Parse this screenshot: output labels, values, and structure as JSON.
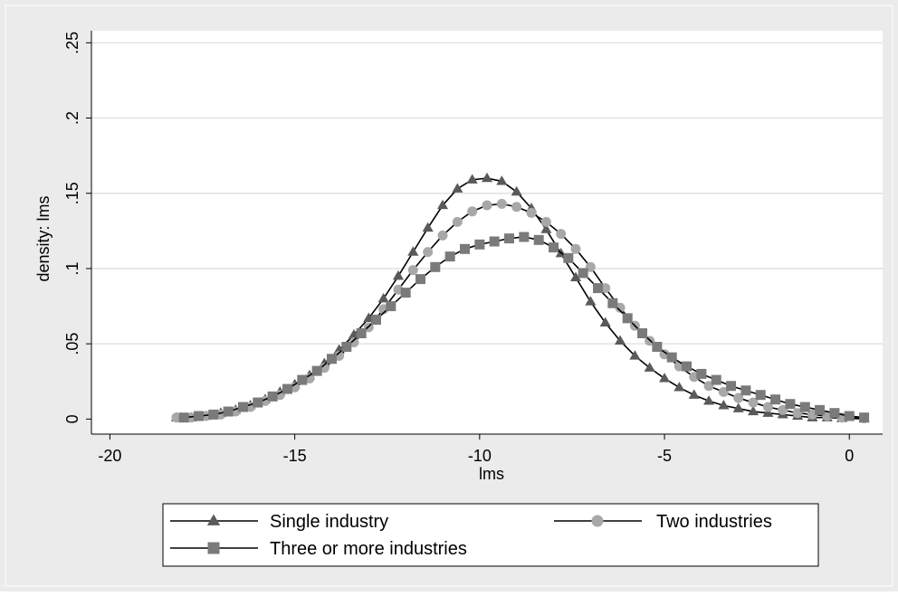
{
  "chart_data": {
    "type": "line",
    "xlabel": "lms",
    "ylabel": "density: lms",
    "xlim": [
      -20.5,
      0.9
    ],
    "ylim": [
      -0.01,
      0.258
    ],
    "xticks": [
      -20,
      -15,
      -10,
      -5,
      0
    ],
    "xtick_labels": [
      "-20",
      "-15",
      "-10",
      "-5",
      "0"
    ],
    "yticks": [
      0,
      0.05,
      0.1,
      0.15,
      0.2,
      0.25
    ],
    "ytick_labels": [
      "0",
      ".05",
      ".1",
      ".15",
      ".2",
      ".25"
    ],
    "grid": true,
    "legend_position": "bottom",
    "background": "#ebebeb",
    "plot_background": "#ffffff",
    "grid_color": "#e2e2e2",
    "series": [
      {
        "name": "Single industry",
        "marker": "triangle",
        "color": "#5a5a5a",
        "x": [
          -18.2,
          -17.8,
          -17.4,
          -17.0,
          -16.6,
          -16.2,
          -15.8,
          -15.4,
          -15.0,
          -14.6,
          -14.2,
          -13.8,
          -13.4,
          -13.0,
          -12.6,
          -12.2,
          -11.8,
          -11.4,
          -11.0,
          -10.6,
          -10.2,
          -9.8,
          -9.4,
          -9.0,
          -8.6,
          -8.2,
          -7.8,
          -7.4,
          -7.0,
          -6.6,
          -6.2,
          -5.8,
          -5.4,
          -5.0,
          -4.6,
          -4.2,
          -3.8,
          -3.4,
          -3.0,
          -2.6,
          -2.2,
          -1.8,
          -1.4,
          -1.0,
          -0.6,
          -0.2,
          0.4
        ],
        "y": [
          0.001,
          0.001,
          0.002,
          0.004,
          0.006,
          0.009,
          0.013,
          0.018,
          0.023,
          0.029,
          0.037,
          0.046,
          0.056,
          0.067,
          0.08,
          0.095,
          0.111,
          0.127,
          0.142,
          0.153,
          0.159,
          0.16,
          0.158,
          0.151,
          0.14,
          0.126,
          0.11,
          0.094,
          0.078,
          0.064,
          0.052,
          0.042,
          0.034,
          0.027,
          0.021,
          0.016,
          0.012,
          0.009,
          0.007,
          0.005,
          0.004,
          0.003,
          0.002,
          0.001,
          0.001,
          0.0005,
          0.0002
        ]
      },
      {
        "name": "Two industries",
        "marker": "circle",
        "color": "#a8a8a8",
        "x": [
          -18.2,
          -17.8,
          -17.4,
          -17.0,
          -16.6,
          -16.2,
          -15.8,
          -15.4,
          -15.0,
          -14.6,
          -14.2,
          -13.8,
          -13.4,
          -13.0,
          -12.6,
          -12.2,
          -11.8,
          -11.4,
          -11.0,
          -10.6,
          -10.2,
          -9.8,
          -9.4,
          -9.0,
          -8.6,
          -8.2,
          -7.8,
          -7.4,
          -7.0,
          -6.6,
          -6.2,
          -5.8,
          -5.4,
          -5.0,
          -4.6,
          -4.2,
          -3.8,
          -3.4,
          -3.0,
          -2.6,
          -2.2,
          -1.8,
          -1.4,
          -1.0,
          -0.6,
          -0.2,
          0.4
        ],
        "y": [
          0.001,
          0.001,
          0.002,
          0.003,
          0.005,
          0.008,
          0.012,
          0.016,
          0.021,
          0.027,
          0.034,
          0.042,
          0.051,
          0.061,
          0.073,
          0.086,
          0.099,
          0.111,
          0.122,
          0.131,
          0.138,
          0.142,
          0.143,
          0.141,
          0.137,
          0.131,
          0.123,
          0.113,
          0.101,
          0.087,
          0.074,
          0.062,
          0.052,
          0.043,
          0.035,
          0.028,
          0.022,
          0.018,
          0.014,
          0.011,
          0.008,
          0.006,
          0.004,
          0.003,
          0.002,
          0.001,
          0.0005
        ]
      },
      {
        "name": "Three or more industries",
        "marker": "square",
        "color": "#7a7a7a",
        "x": [
          -18.0,
          -17.6,
          -17.2,
          -16.8,
          -16.4,
          -16.0,
          -15.6,
          -15.2,
          -14.8,
          -14.4,
          -14.0,
          -13.6,
          -13.2,
          -12.8,
          -12.4,
          -12.0,
          -11.6,
          -11.2,
          -10.8,
          -10.4,
          -10.0,
          -9.6,
          -9.2,
          -8.8,
          -8.4,
          -8.0,
          -7.6,
          -7.2,
          -6.8,
          -6.4,
          -6.0,
          -5.6,
          -5.2,
          -4.8,
          -4.4,
          -4.0,
          -3.6,
          -3.2,
          -2.8,
          -2.4,
          -2.0,
          -1.6,
          -1.2,
          -0.8,
          -0.4,
          0.0,
          0.4
        ],
        "y": [
          0.001,
          0.002,
          0.003,
          0.005,
          0.008,
          0.011,
          0.015,
          0.02,
          0.026,
          0.032,
          0.04,
          0.048,
          0.057,
          0.066,
          0.075,
          0.084,
          0.093,
          0.101,
          0.108,
          0.113,
          0.116,
          0.118,
          0.12,
          0.121,
          0.119,
          0.114,
          0.107,
          0.097,
          0.087,
          0.077,
          0.067,
          0.057,
          0.048,
          0.041,
          0.035,
          0.03,
          0.026,
          0.022,
          0.019,
          0.016,
          0.013,
          0.01,
          0.008,
          0.006,
          0.004,
          0.002,
          0.001
        ]
      }
    ]
  }
}
